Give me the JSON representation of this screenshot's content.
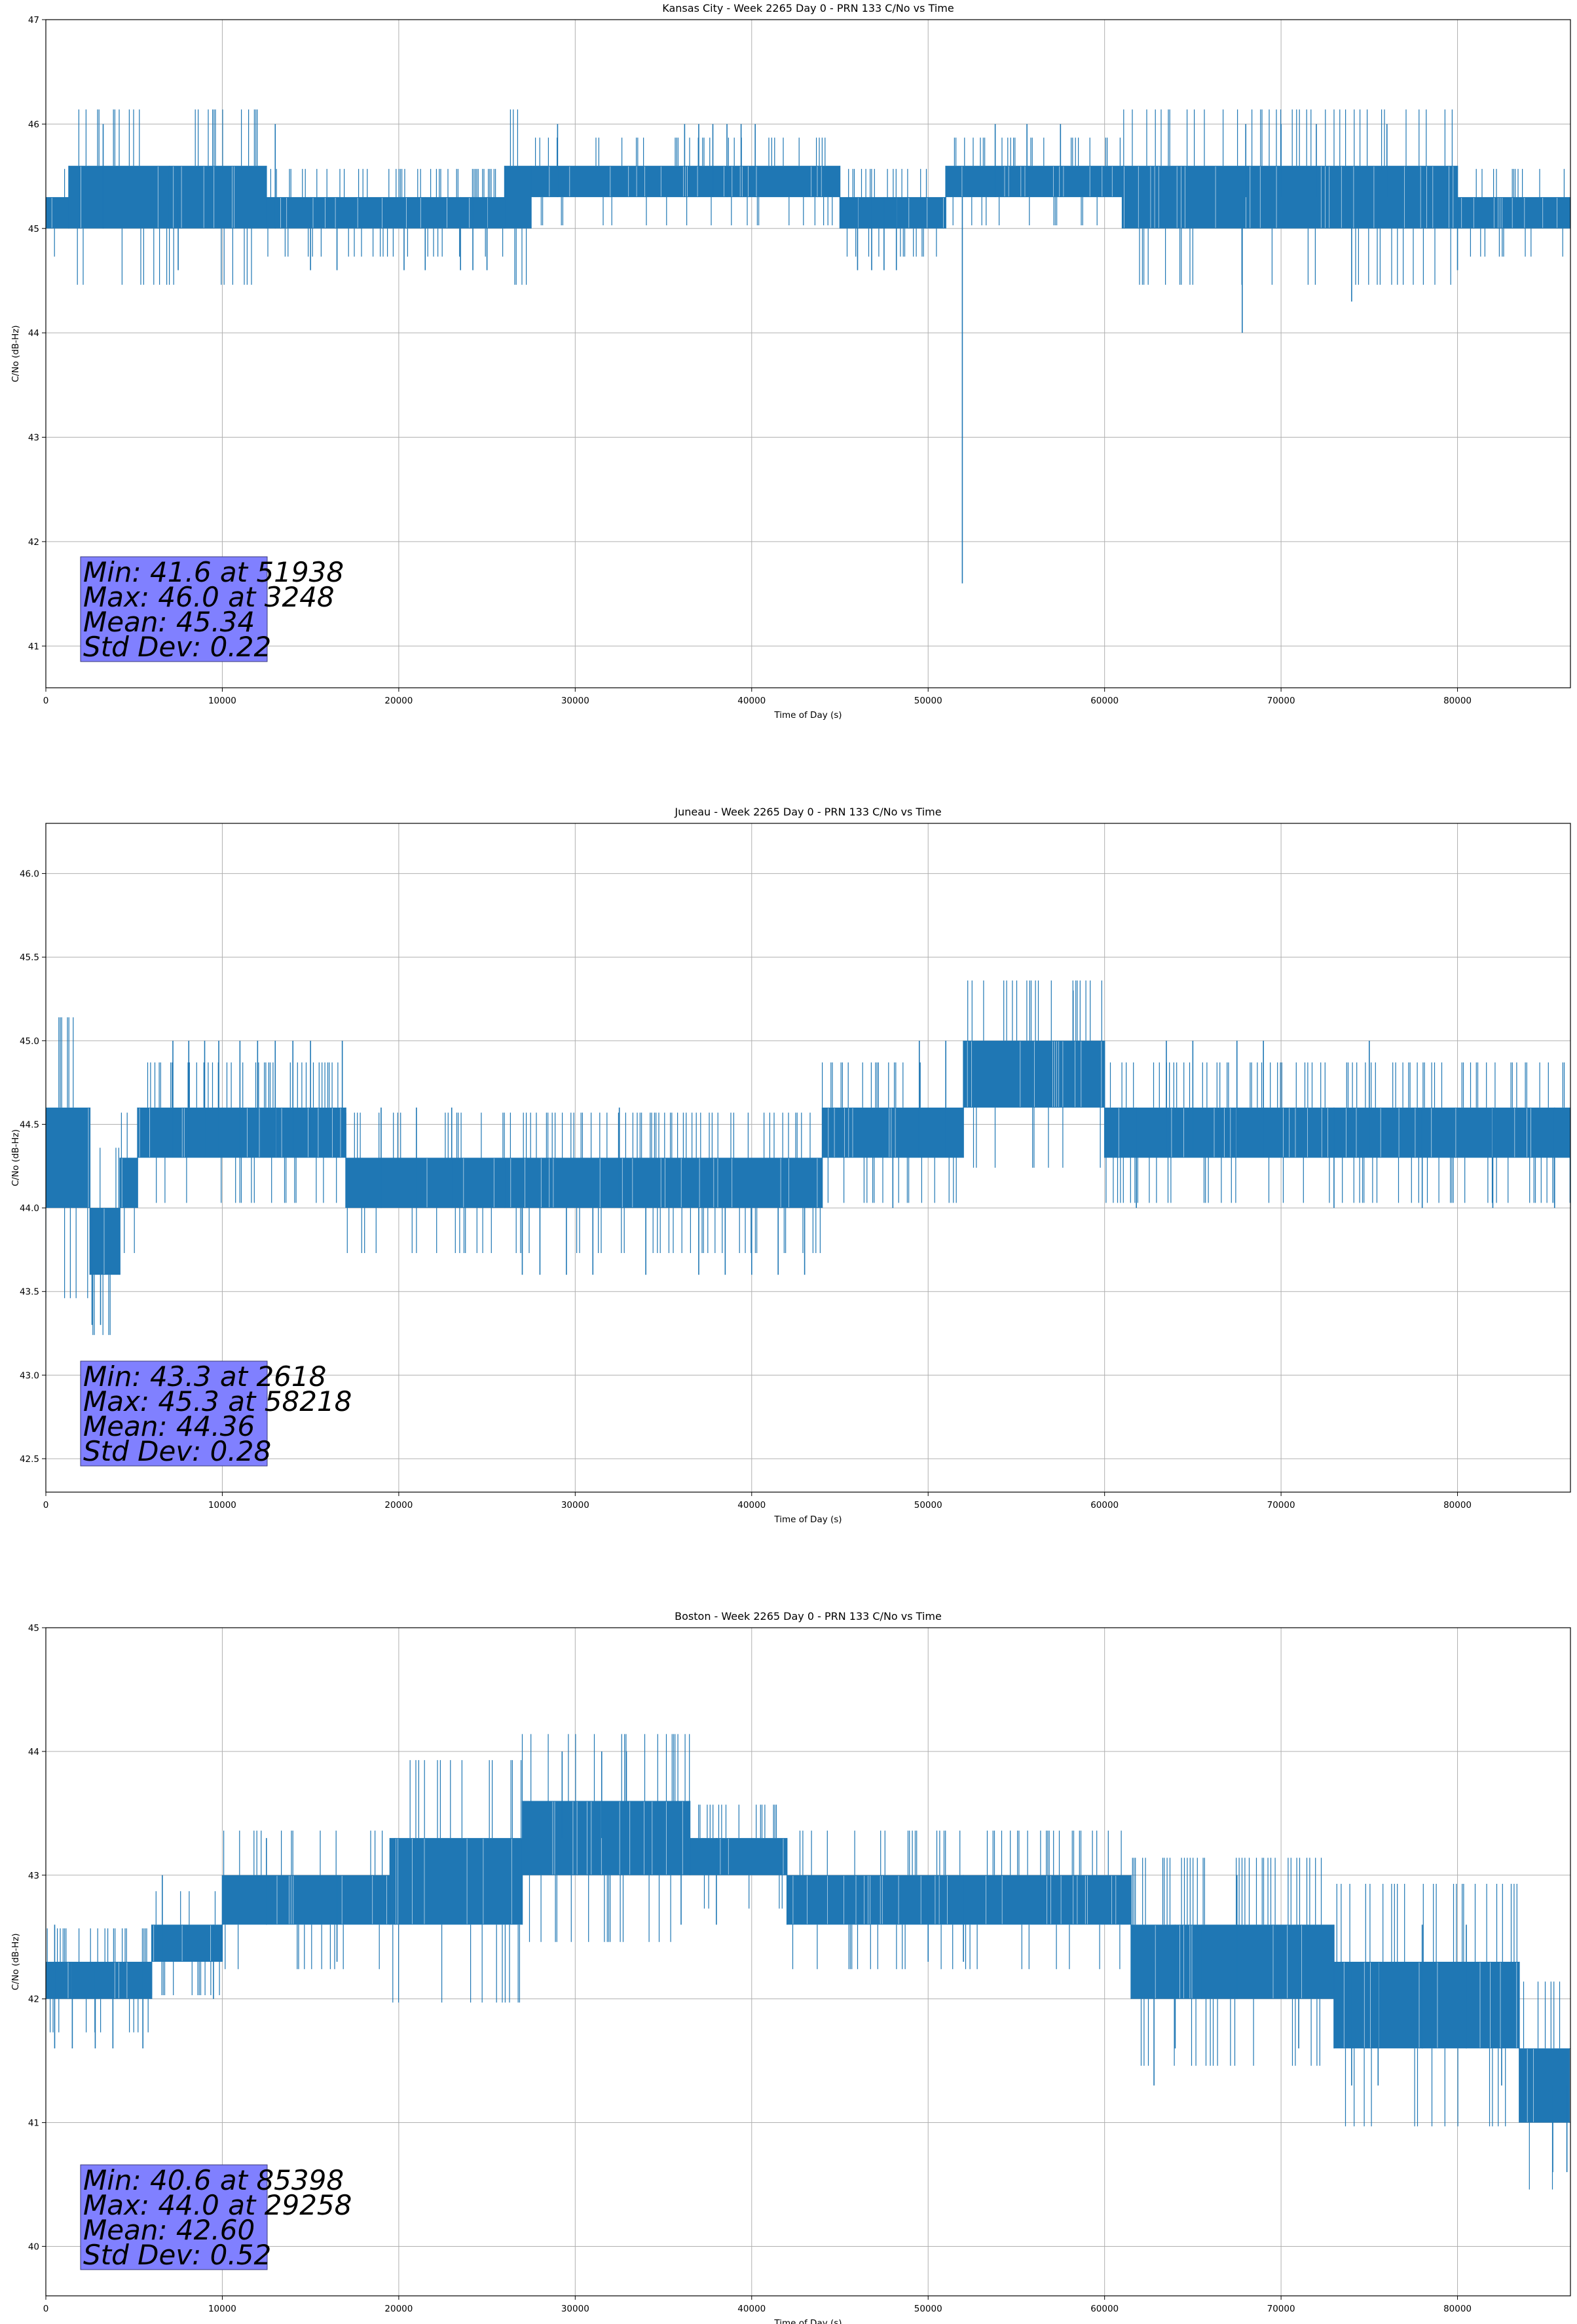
{
  "colors": {
    "series": "#1f77b4",
    "stats_box": "#8080ff",
    "grid": "#b0b0b0"
  },
  "chart_data": [
    {
      "type": "line",
      "title": "Kansas City - Week 2265 Day 0 - PRN 133 C/No vs Time",
      "xlabel": "Time of Day (s)",
      "ylabel": "C/No (dB-Hz)",
      "xlim": [
        0,
        86400
      ],
      "ylim": [
        40.6,
        47.0
      ],
      "xticks": [
        "0",
        "10000",
        "20000",
        "30000",
        "40000",
        "50000",
        "60000",
        "70000",
        "80000"
      ],
      "yticks": [
        "41",
        "42",
        "43",
        "44",
        "45",
        "46",
        "47"
      ],
      "grid": true,
      "stats": [
        "Min: 41.6 at 51938",
        "Max: 46.0 at 3248",
        "Mean: 45.34",
        "Std Dev: 0.22"
      ],
      "segments": [
        {
          "x0": 0,
          "x1": 1300,
          "lo": 45.0,
          "hi": 45.3
        },
        {
          "x0": 1300,
          "x1": 7000,
          "lo": 45.0,
          "hi": 45.6
        },
        {
          "x0": 7000,
          "x1": 12500,
          "lo": 45.0,
          "hi": 45.6
        },
        {
          "x0": 12500,
          "x1": 26000,
          "lo": 45.0,
          "hi": 45.3
        },
        {
          "x0": 26000,
          "x1": 27500,
          "lo": 45.0,
          "hi": 45.6
        },
        {
          "x0": 27500,
          "x1": 45000,
          "lo": 45.3,
          "hi": 45.6
        },
        {
          "x0": 45000,
          "x1": 51000,
          "lo": 45.0,
          "hi": 45.3
        },
        {
          "x0": 51000,
          "x1": 61000,
          "lo": 45.3,
          "hi": 45.6
        },
        {
          "x0": 61000,
          "x1": 80000,
          "lo": 45.0,
          "hi": 45.6
        },
        {
          "x0": 80000,
          "x1": 86400,
          "lo": 45.0,
          "hi": 45.3
        }
      ],
      "spikes": [
        {
          "x": 3248,
          "lo": 45.0,
          "hi": 46.0
        },
        {
          "x": 7500,
          "lo": 44.6,
          "hi": 45.3
        },
        {
          "x": 13000,
          "lo": 45.0,
          "hi": 46.0
        },
        {
          "x": 15000,
          "lo": 44.6,
          "hi": 45.3
        },
        {
          "x": 16500,
          "lo": 44.6,
          "hi": 45.3
        },
        {
          "x": 20300,
          "lo": 44.6,
          "hi": 45.3
        },
        {
          "x": 21500,
          "lo": 44.6,
          "hi": 45.3
        },
        {
          "x": 23500,
          "lo": 44.6,
          "hi": 45.3
        },
        {
          "x": 24200,
          "lo": 44.6,
          "hi": 45.3
        },
        {
          "x": 25000,
          "lo": 44.6,
          "hi": 45.3
        },
        {
          "x": 29000,
          "lo": 45.3,
          "hi": 46.0
        },
        {
          "x": 36200,
          "lo": 45.3,
          "hi": 46.0
        },
        {
          "x": 37000,
          "lo": 45.3,
          "hi": 46.0
        },
        {
          "x": 37800,
          "lo": 45.3,
          "hi": 46.0
        },
        {
          "x": 38600,
          "lo": 45.3,
          "hi": 46.0
        },
        {
          "x": 39400,
          "lo": 45.3,
          "hi": 46.0
        },
        {
          "x": 40200,
          "lo": 45.3,
          "hi": 46.0
        },
        {
          "x": 46000,
          "lo": 44.6,
          "hi": 45.3
        },
        {
          "x": 46800,
          "lo": 44.6,
          "hi": 45.3
        },
        {
          "x": 47500,
          "lo": 44.6,
          "hi": 45.3
        },
        {
          "x": 48200,
          "lo": 44.6,
          "hi": 45.3
        },
        {
          "x": 51938,
          "lo": 41.6,
          "hi": 45.3
        },
        {
          "x": 53800,
          "lo": 45.3,
          "hi": 46.0
        },
        {
          "x": 55600,
          "lo": 45.3,
          "hi": 46.0
        },
        {
          "x": 57500,
          "lo": 45.3,
          "hi": 46.0
        },
        {
          "x": 67800,
          "lo": 44.0,
          "hi": 45.3
        },
        {
          "x": 68000,
          "lo": 45.3,
          "hi": 46.0
        },
        {
          "x": 70000,
          "lo": 45.3,
          "hi": 46.0
        },
        {
          "x": 72000,
          "lo": 45.3,
          "hi": 46.0
        },
        {
          "x": 74000,
          "lo": 44.3,
          "hi": 45.3
        },
        {
          "x": 76000,
          "lo": 45.3,
          "hi": 46.0
        },
        {
          "x": 80000,
          "lo": 44.6,
          "hi": 45.3
        }
      ]
    },
    {
      "type": "line",
      "title": "Juneau - Week 2265 Day 0 - PRN 133 C/No vs Time",
      "xlabel": "Time of Day (s)",
      "ylabel": "C/No (dB-Hz)",
      "xlim": [
        0,
        86400
      ],
      "ylim": [
        42.3,
        46.3
      ],
      "xticks": [
        "0",
        "10000",
        "20000",
        "30000",
        "40000",
        "50000",
        "60000",
        "70000",
        "80000"
      ],
      "yticks": [
        "42.5",
        "43.0",
        "43.5",
        "44.0",
        "44.5",
        "45.0",
        "45.5",
        "46.0"
      ],
      "ytick_values": [
        42.5,
        43.0,
        43.5,
        44.0,
        44.5,
        45.0,
        45.5,
        46.0
      ],
      "grid": true,
      "stats": [
        "Min: 43.3 at 2618",
        "Max: 45.3 at 58218",
        "Mean: 44.36",
        "Std Dev: 0.28"
      ],
      "segments": [
        {
          "x0": 0,
          "x1": 2500,
          "lo": 44.0,
          "hi": 44.6
        },
        {
          "x0": 2500,
          "x1": 4200,
          "lo": 43.6,
          "hi": 44.0
        },
        {
          "x0": 4200,
          "x1": 5200,
          "lo": 44.0,
          "hi": 44.3
        },
        {
          "x0": 5200,
          "x1": 17000,
          "lo": 44.3,
          "hi": 44.6
        },
        {
          "x0": 17000,
          "x1": 26000,
          "lo": 44.0,
          "hi": 44.3
        },
        {
          "x0": 26000,
          "x1": 44000,
          "lo": 44.0,
          "hi": 44.3
        },
        {
          "x0": 44000,
          "x1": 52000,
          "lo": 44.3,
          "hi": 44.6
        },
        {
          "x0": 52000,
          "x1": 60000,
          "lo": 44.6,
          "hi": 45.0
        },
        {
          "x0": 60000,
          "x1": 86400,
          "lo": 44.3,
          "hi": 44.6
        }
      ],
      "spikes": [
        {
          "x": 2618,
          "lo": 43.3,
          "hi": 44.0
        },
        {
          "x": 3100,
          "lo": 43.3,
          "hi": 44.0
        },
        {
          "x": 7200,
          "lo": 44.3,
          "hi": 45.0
        },
        {
          "x": 8100,
          "lo": 44.3,
          "hi": 45.0
        },
        {
          "x": 9000,
          "lo": 44.3,
          "hi": 45.0
        },
        {
          "x": 9800,
          "lo": 44.3,
          "hi": 45.0
        },
        {
          "x": 11000,
          "lo": 44.3,
          "hi": 45.0
        },
        {
          "x": 12000,
          "lo": 44.3,
          "hi": 45.0
        },
        {
          "x": 13000,
          "lo": 44.3,
          "hi": 45.0
        },
        {
          "x": 14000,
          "lo": 44.3,
          "hi": 45.0
        },
        {
          "x": 15000,
          "lo": 44.3,
          "hi": 45.0
        },
        {
          "x": 16800,
          "lo": 44.3,
          "hi": 45.0
        },
        {
          "x": 19000,
          "lo": 44.0,
          "hi": 44.6
        },
        {
          "x": 21000,
          "lo": 44.0,
          "hi": 44.6
        },
        {
          "x": 23000,
          "lo": 44.0,
          "hi": 44.6
        },
        {
          "x": 27000,
          "lo": 43.6,
          "hi": 44.0
        },
        {
          "x": 28000,
          "lo": 43.6,
          "hi": 44.0
        },
        {
          "x": 29500,
          "lo": 43.6,
          "hi": 44.0
        },
        {
          "x": 31000,
          "lo": 43.6,
          "hi": 44.0
        },
        {
          "x": 32500,
          "lo": 44.0,
          "hi": 44.6
        },
        {
          "x": 34000,
          "lo": 43.6,
          "hi": 44.0
        },
        {
          "x": 37000,
          "lo": 43.6,
          "hi": 44.0
        },
        {
          "x": 38500,
          "lo": 43.6,
          "hi": 44.0
        },
        {
          "x": 40000,
          "lo": 43.6,
          "hi": 44.0
        },
        {
          "x": 41500,
          "lo": 43.6,
          "hi": 44.0
        },
        {
          "x": 43000,
          "lo": 43.6,
          "hi": 44.0
        },
        {
          "x": 48000,
          "lo": 44.0,
          "hi": 44.6
        },
        {
          "x": 49500,
          "lo": 44.3,
          "hi": 45.0
        },
        {
          "x": 51000,
          "lo": 44.3,
          "hi": 45.0
        },
        {
          "x": 58218,
          "lo": 44.6,
          "hi": 45.3
        },
        {
          "x": 61800,
          "lo": 44.0,
          "hi": 44.6
        },
        {
          "x": 63500,
          "lo": 44.3,
          "hi": 45.0
        },
        {
          "x": 65000,
          "lo": 44.3,
          "hi": 45.0
        },
        {
          "x": 67500,
          "lo": 44.3,
          "hi": 45.0
        },
        {
          "x": 69000,
          "lo": 44.3,
          "hi": 45.0
        },
        {
          "x": 73000,
          "lo": 44.0,
          "hi": 44.6
        },
        {
          "x": 75000,
          "lo": 44.3,
          "hi": 45.0
        },
        {
          "x": 78000,
          "lo": 44.0,
          "hi": 44.6
        },
        {
          "x": 82000,
          "lo": 44.0,
          "hi": 44.6
        },
        {
          "x": 85500,
          "lo": 44.0,
          "hi": 44.6
        }
      ]
    },
    {
      "type": "line",
      "title": "Boston - Week 2265 Day 0 - PRN 133 C/No vs Time",
      "xlabel": "Time of Day (s)",
      "ylabel": "C/No (dB-Hz)",
      "xlim": [
        0,
        86400
      ],
      "ylim": [
        39.6,
        45.0
      ],
      "xticks": [
        "0",
        "10000",
        "20000",
        "30000",
        "40000",
        "50000",
        "60000",
        "70000",
        "80000"
      ],
      "yticks": [
        "40",
        "41",
        "42",
        "43",
        "44",
        "45"
      ],
      "grid": true,
      "stats": [
        "Min: 40.6 at 85398",
        "Max: 44.0 at 29258",
        "Mean: 42.60",
        "Std Dev: 0.52"
      ],
      "segments": [
        {
          "x0": 0,
          "x1": 6000,
          "lo": 42.0,
          "hi": 42.3
        },
        {
          "x0": 6000,
          "x1": 10000,
          "lo": 42.3,
          "hi": 42.6
        },
        {
          "x0": 10000,
          "x1": 19500,
          "lo": 42.6,
          "hi": 43.0
        },
        {
          "x0": 19500,
          "x1": 27000,
          "lo": 42.6,
          "hi": 43.3
        },
        {
          "x0": 27000,
          "x1": 36500,
          "lo": 43.0,
          "hi": 43.6
        },
        {
          "x0": 36500,
          "x1": 42000,
          "lo": 43.0,
          "hi": 43.3
        },
        {
          "x0": 42000,
          "x1": 61500,
          "lo": 42.6,
          "hi": 43.0
        },
        {
          "x0": 61500,
          "x1": 73000,
          "lo": 42.0,
          "hi": 42.6
        },
        {
          "x0": 73000,
          "x1": 83500,
          "lo": 41.6,
          "hi": 42.3
        },
        {
          "x0": 83500,
          "x1": 86400,
          "lo": 41.0,
          "hi": 41.6
        }
      ],
      "spikes": [
        {
          "x": 500,
          "lo": 41.6,
          "hi": 42.6
        },
        {
          "x": 1500,
          "lo": 41.6,
          "hi": 42.3
        },
        {
          "x": 2800,
          "lo": 41.6,
          "hi": 42.3
        },
        {
          "x": 3800,
          "lo": 41.6,
          "hi": 42.3
        },
        {
          "x": 5500,
          "lo": 41.6,
          "hi": 42.3
        },
        {
          "x": 6600,
          "lo": 42.3,
          "hi": 43.0
        },
        {
          "x": 9500,
          "lo": 42.0,
          "hi": 42.6
        },
        {
          "x": 12500,
          "lo": 42.6,
          "hi": 43.3
        },
        {
          "x": 16500,
          "lo": 42.3,
          "hi": 43.0
        },
        {
          "x": 19800,
          "lo": 42.6,
          "hi": 43.3
        },
        {
          "x": 29258,
          "lo": 43.3,
          "hi": 44.0
        },
        {
          "x": 31500,
          "lo": 43.3,
          "hi": 44.0
        },
        {
          "x": 32900,
          "lo": 43.3,
          "hi": 44.0
        },
        {
          "x": 36000,
          "lo": 42.6,
          "hi": 43.3
        },
        {
          "x": 38000,
          "lo": 42.6,
          "hi": 43.3
        },
        {
          "x": 50000,
          "lo": 42.3,
          "hi": 43.0
        },
        {
          "x": 52000,
          "lo": 42.3,
          "hi": 43.0
        },
        {
          "x": 62800,
          "lo": 41.3,
          "hi": 42.3
        },
        {
          "x": 64000,
          "lo": 41.6,
          "hi": 42.6
        },
        {
          "x": 65500,
          "lo": 42.0,
          "hi": 42.6
        },
        {
          "x": 67500,
          "lo": 42.0,
          "hi": 43.0
        },
        {
          "x": 71000,
          "lo": 41.6,
          "hi": 42.3
        },
        {
          "x": 74000,
          "lo": 41.3,
          "hi": 42.3
        },
        {
          "x": 75500,
          "lo": 41.3,
          "hi": 42.3
        },
        {
          "x": 78000,
          "lo": 41.6,
          "hi": 42.6
        },
        {
          "x": 80500,
          "lo": 41.6,
          "hi": 42.6
        },
        {
          "x": 82500,
          "lo": 41.3,
          "hi": 42.3
        },
        {
          "x": 85398,
          "lo": 40.6,
          "hi": 41.3
        },
        {
          "x": 86200,
          "lo": 40.6,
          "hi": 41.3
        }
      ]
    }
  ]
}
